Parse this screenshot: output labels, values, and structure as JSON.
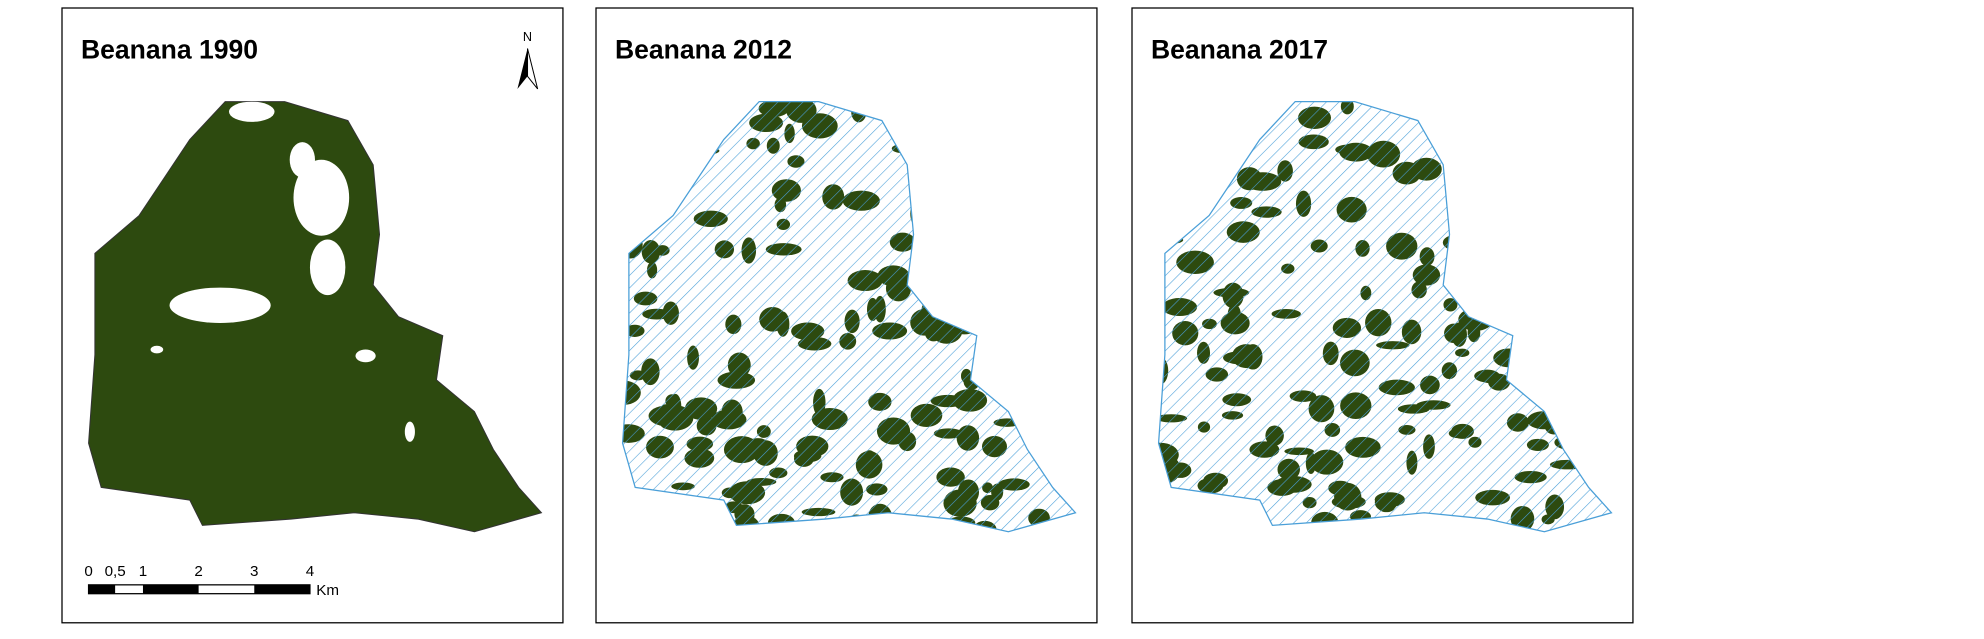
{
  "panels": [
    {
      "title": "Beanana 1990"
    },
    {
      "title": "Beanana 2012"
    },
    {
      "title": "Beanana 2017"
    }
  ],
  "north_arrow": "N",
  "scale_bar": {
    "labels": [
      "0",
      "0,5",
      "1",
      "2",
      "3",
      "4"
    ],
    "unit": "Km"
  }
}
